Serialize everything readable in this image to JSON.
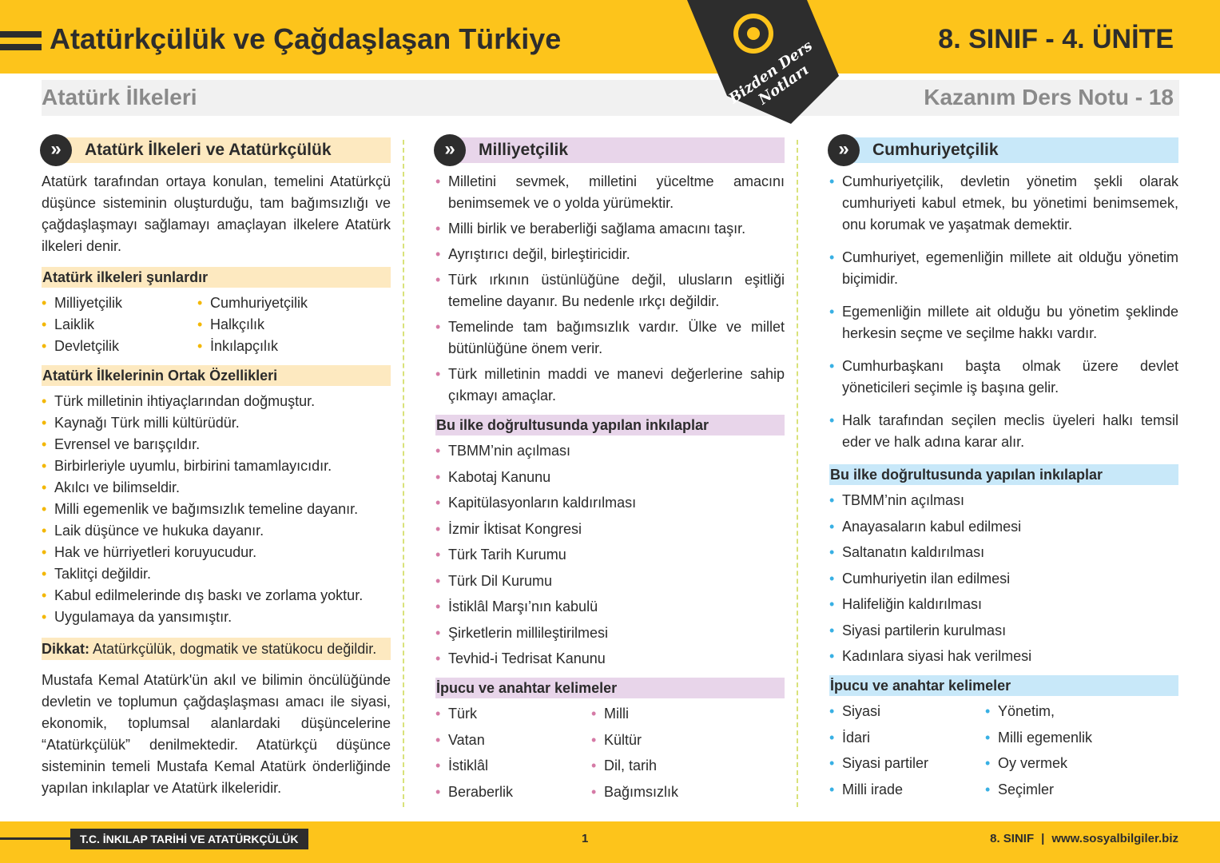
{
  "header": {
    "title": "Atatürkçülük ve Çağdaşlaşan Türkiye",
    "unit": "8. SINIF - 4. ÜNİTE",
    "subtitle": "Atatürk İlkeleri",
    "note": "Kazanım Ders Notu - 18",
    "badge": [
      "Bizden Ders",
      "Notları"
    ]
  },
  "columns": [
    {
      "heading": "Atatürk İlkeleri ve Atatürkçülük",
      "blocks": [
        {
          "paragraph": "Atatürk tarafından ortaya konulan, temelini Atatürkçü düşünce sisteminin oluşturduğu, tam bağımsızlığı ve çağdaşlaşmayı sağlamayı amaçlayan ilkelere Atatürk ilkeleri denir."
        },
        {
          "subheading": "Atatürk ilkeleri şunlardır"
        },
        {
          "pairs": [
            [
              "Milliyetçilik",
              "Cumhuriyetçilik"
            ],
            [
              "Laiklik",
              "Halkçılık"
            ],
            [
              "Devletçilik",
              "İnkılapçılık"
            ]
          ]
        },
        {
          "subheading": "Atatürk İlkelerinin Ortak Özellikleri"
        },
        {
          "items": [
            "Türk milletinin ihtiyaçlarından doğmuştur.",
            "Kaynağı Türk milli kültürüdür.",
            "Evrensel ve barışçıldır.",
            "Birbirleriyle uyumlu, birbirini tamamlayıcıdır.",
            "Akılcı ve bilimseldir.",
            "Milli egemenlik ve bağımsızlık temeline dayanır.",
            "Laik düşünce ve hukuka dayanır.",
            "Hak ve hürriyetleri koruyucudur.",
            "Taklitçi değildir.",
            "Kabul edilmelerinde dış baskı ve zorlama yoktur.",
            "Uygulamaya da yansımıştır."
          ]
        },
        {
          "note": {
            "label": "Dikkat:",
            "text": "Atatürkçülük, dogmatik ve statükocu değildir."
          }
        },
        {
          "paragraph": "Mustafa Kemal Atatürk'ün akıl ve bilimin öncülüğünde devletin ve toplumun çağdaşlaşması amacı ile siyasi, ekonomik, toplumsal alanlardaki düşüncelerine “Atatürkçülük” denilmektedir. Atatürkçü düşünce sisteminin temeli Mustafa Kemal Atatürk önderliğinde yapılan inkılaplar ve Atatürk ilkeleridir."
        }
      ]
    },
    {
      "heading": "Milliyetçilik",
      "blocks": [
        {
          "items": [
            "Milletini sevmek, milletini yüceltme amacını benimsemek ve o yolda yürümektir.",
            "Milli birlik ve beraberliği sağlama amacını taşır.",
            "Ayrıştırıcı değil, birleştiricidir.",
            "Türk ırkının üstünlüğüne değil, ulusların eşitliği temeline dayanır. Bu nedenle ırkçı değildir.",
            "Temelinde tam bağımsızlık vardır. Ülke ve millet bütünlüğüne önem verir.",
            "Türk milletinin maddi ve manevi değerlerine sahip çıkmayı amaçlar."
          ]
        },
        {
          "subheading": "Bu ilke doğrultusunda yapılan inkılaplar"
        },
        {
          "items": [
            "TBMM’nin açılması",
            "Kabotaj Kanunu",
            "Kapitülasyonların kaldırılması",
            "İzmir İktisat Kongresi",
            "Türk Tarih Kurumu",
            "Türk Dil Kurumu",
            "İstiklâl Marşı’nın kabulü",
            "Şirketlerin millileştirilmesi",
            "Tevhid-i Tedrisat Kanunu"
          ]
        },
        {
          "subheading": "İpucu ve anahtar kelimeler"
        },
        {
          "pairs": [
            [
              "Türk",
              "Milli"
            ],
            [
              "Vatan",
              "Kültür"
            ],
            [
              "İstiklâl",
              "Dil, tarih"
            ],
            [
              "Beraberlik",
              "Bağımsızlık"
            ]
          ]
        }
      ]
    },
    {
      "heading": "Cumhuriyetçilik",
      "blocks": [
        {
          "items": [
            "Cumhuriyetçilik, devletin yönetim şekli olarak cumhuriyeti kabul etmek, bu yönetimi benimsemek, onu korumak ve yaşatmak demektir.",
            "Cumhuriyet, egemenliğin millete ait olduğu yönetim biçimidir.",
            "Egemenliğin millete ait olduğu bu yönetim şeklinde herkesin seçme ve seçilme hakkı vardır.",
            "Cumhurbaşkanı başta olmak üzere devlet yöneticileri seçimle iş başına gelir.",
            "Halk tarafından seçilen meclis üyeleri halkı temsil eder ve halk adına karar alır."
          ]
        },
        {
          "subheading": "Bu ilke doğrultusunda yapılan inkılaplar"
        },
        {
          "items": [
            "TBMM’nin açılması",
            "Anayasaların kabul edilmesi",
            "Saltanatın kaldırılması",
            "Cumhuriyetin ilan edilmesi",
            "Halifeliğin kaldırılması",
            "Siyasi partilerin kurulması",
            "Kadınlara siyasi hak verilmesi"
          ]
        },
        {
          "subheading": "İpucu ve anahtar kelimeler"
        },
        {
          "pairs": [
            [
              "Siyasi",
              "Yönetim,"
            ],
            [
              "İdari",
              "Milli egemenlik"
            ],
            [
              "Siyasi partiler",
              "Oy vermek"
            ],
            [
              "Milli irade",
              "Seçimler"
            ]
          ]
        }
      ]
    }
  ],
  "footer": {
    "course": "T.C. İNKILAP TARİHİ VE ATATÜRKÇÜLÜK",
    "page": "1",
    "grade": "8. SINIF",
    "site": "www.sosyalbilgiler.biz"
  }
}
